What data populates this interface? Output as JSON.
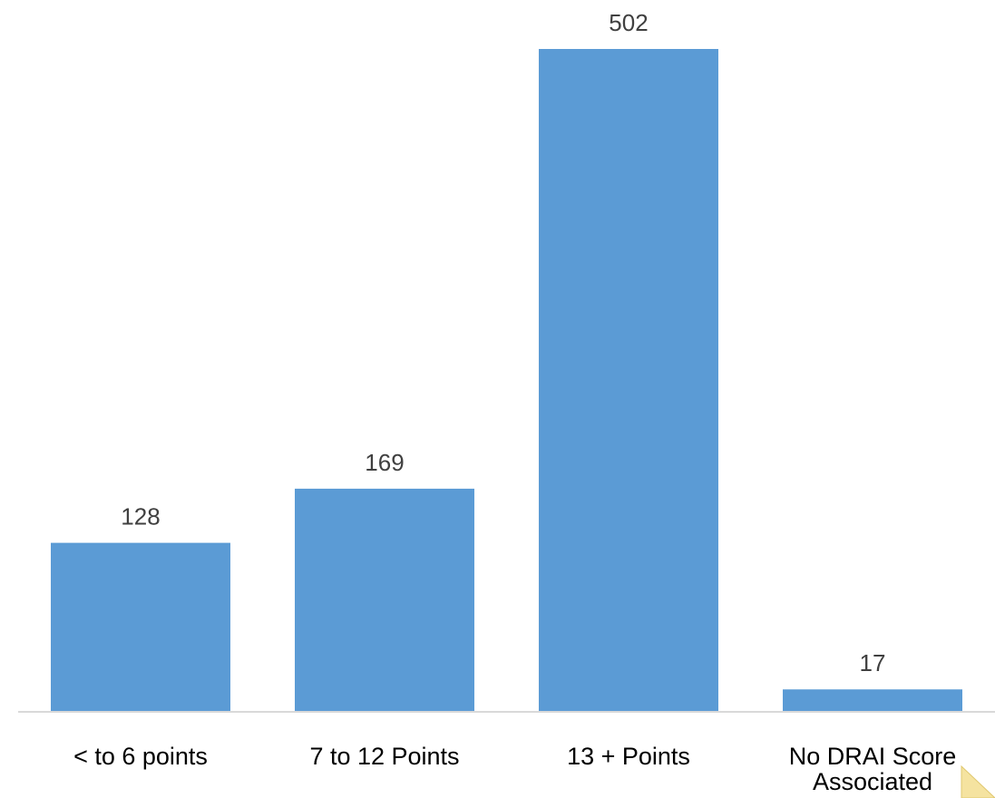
{
  "chart_data": {
    "type": "bar",
    "title": "",
    "xlabel": "",
    "ylabel": "",
    "categories": [
      [
        "< to 6 points"
      ],
      [
        "7 to 12 Points"
      ],
      [
        "13 + Points"
      ],
      [
        "No DRAI Score",
        "Associated"
      ]
    ],
    "values": [
      128,
      169,
      502,
      17
    ],
    "ylim": [
      0,
      502
    ],
    "grid": false,
    "legend": "none",
    "bar_color": "#5B9BD5",
    "axis_color": "#D9D9D9",
    "label_color": "#404040"
  },
  "annotation": {
    "folded_corner_color": "#F5E3A0"
  }
}
